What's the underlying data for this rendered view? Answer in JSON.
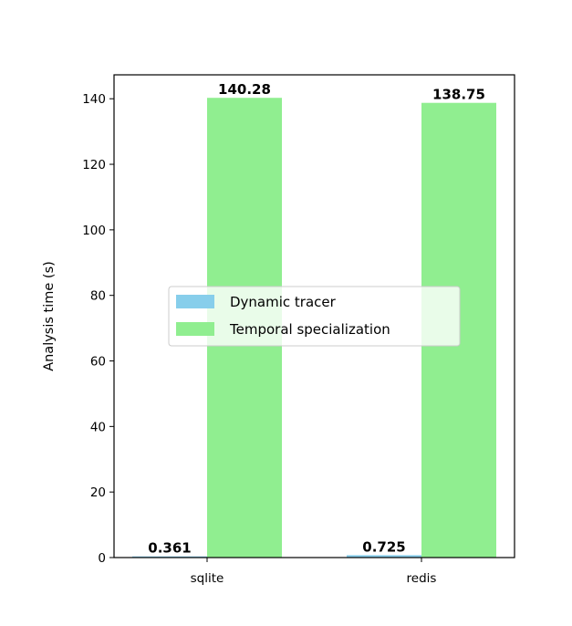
{
  "chart_data": {
    "type": "bar",
    "title": "",
    "xlabel": "",
    "ylabel": "Analysis time (s)",
    "categories": [
      "sqlite",
      "redis"
    ],
    "series": [
      {
        "name": "Dynamic tracer",
        "values": [
          0.361,
          0.725
        ],
        "labels": [
          "0.361",
          "0.725"
        ],
        "color": "#87CEEB"
      },
      {
        "name": "Temporal specialization",
        "values": [
          140.28,
          138.75
        ],
        "labels": [
          "140.28",
          "138.75"
        ],
        "color": "#90EE90"
      }
    ],
    "ylim": [
      0,
      147.3
    ],
    "yticks": [
      0,
      20,
      40,
      60,
      80,
      100,
      120,
      140
    ],
    "ytick_labels": [
      "0",
      "20",
      "40",
      "60",
      "80",
      "100",
      "120",
      "140"
    ],
    "grid": false,
    "legend_position": "center"
  }
}
